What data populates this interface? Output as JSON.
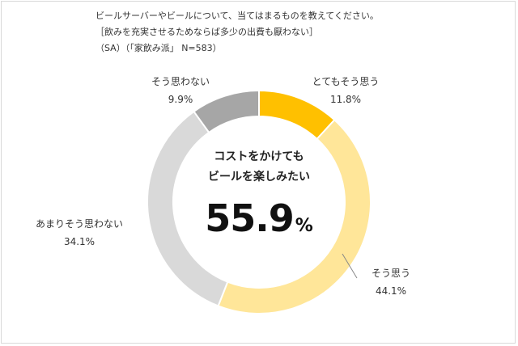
{
  "header": {
    "question": "ビールサーバーやビールについて、当てはまるものを教えてください。",
    "subtitle": "［飲みを充実させるためならば多少の出費も厭わない］",
    "sample": "（SA）（「家飲み派」 N=583）"
  },
  "center": {
    "line1": "コストをかけても",
    "line2": "ビールを楽しみたい",
    "value": "55.9",
    "unit": "%"
  },
  "chart_data": {
    "type": "pie",
    "donut": true,
    "categories": [
      "とてもそう思う",
      "そう思う",
      "あまりそう思わない",
      "そう思わない"
    ],
    "values": [
      11.8,
      44.1,
      34.1,
      9.9
    ],
    "value_labels": [
      "11.8%",
      "44.1%",
      "34.1%",
      "9.9%"
    ],
    "colors": [
      "#FFC000",
      "#FFE699",
      "#D9D9D9",
      "#A6A6A6"
    ],
    "start": "top",
    "direction": "clockwise"
  }
}
